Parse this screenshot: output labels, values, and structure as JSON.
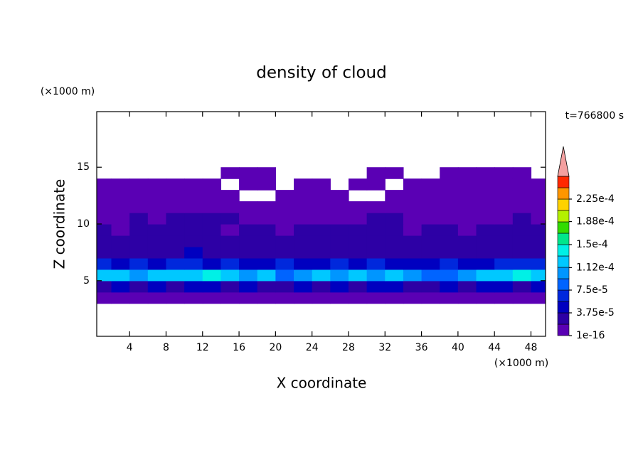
{
  "chart_data": {
    "type": "contour",
    "title": "density of cloud",
    "x_label": "X coordinate",
    "y_label": "Z coordinate",
    "x_unit": "(×1000 m)",
    "y_unit": "(×1000 m)",
    "time_label": "t=766800 s",
    "xlim": [
      0.4,
      49.6
    ],
    "ylim": [
      0.1,
      19.9
    ],
    "xticks": [
      4,
      8,
      12,
      16,
      20,
      24,
      28,
      32,
      36,
      40,
      44,
      48
    ],
    "yticks": [
      5,
      10,
      15
    ],
    "clim": [
      1e-16,
      0.0002625
    ],
    "cticks": [
      {
        "value": 1e-16,
        "label": "1e-16"
      },
      {
        "value": 3.75e-05,
        "label": "3.75e-5"
      },
      {
        "value": 7.5e-05,
        "label": "7.5e-5"
      },
      {
        "value": 0.000112,
        "label": "1.12e-4"
      },
      {
        "value": 0.00015,
        "label": "1.5e-4"
      },
      {
        "value": 0.000188,
        "label": "1.88e-4"
      },
      {
        "value": 0.000225,
        "label": "2.25e-4"
      }
    ],
    "colors": [
      "#5a00b4",
      "#2d00a5",
      "#0000c0",
      "#0028dc",
      "#0064ff",
      "#0096ff",
      "#00c8ff",
      "#00f0e6",
      "#00e68c",
      "#32dc00",
      "#b4f000",
      "#ffd200",
      "#ff9600",
      "#ff2800"
    ],
    "extend_color": "#f4a0a0",
    "x": [
      1,
      3,
      5,
      7,
      9,
      11,
      13,
      15,
      17,
      19,
      21,
      23,
      25,
      27,
      29,
      31,
      33,
      35,
      37,
      39,
      41,
      43,
      45,
      47,
      49
    ],
    "y": [
      3.5,
      4.5,
      5.5,
      6.5,
      7.5,
      8.5,
      9.5,
      10.5,
      11.5,
      12.5,
      13.5,
      14.5
    ],
    "z": [
      [
        1e-05,
        1e-05,
        1e-05,
        1e-05,
        1e-05,
        1e-05,
        1e-05,
        1e-05,
        1e-05,
        1e-05,
        1e-05,
        1e-05,
        1e-05,
        1e-05,
        1e-05,
        1e-05,
        1e-05,
        1e-05,
        1e-05,
        1e-05,
        1e-05,
        1e-05,
        1e-05,
        1e-05,
        1e-05
      ],
      [
        3e-05,
        5e-05,
        3e-05,
        5e-05,
        3e-05,
        5e-05,
        5e-05,
        3e-05,
        5e-05,
        3e-05,
        3e-05,
        5e-05,
        3e-05,
        5e-05,
        3e-05,
        5e-05,
        5e-05,
        3e-05,
        3e-05,
        5e-05,
        3e-05,
        5e-05,
        5e-05,
        3e-05,
        5e-05
      ],
      [
        0.00012,
        0.00012,
        0.0001,
        0.00012,
        0.00012,
        0.00012,
        0.00014,
        0.00012,
        0.0001,
        0.00012,
        9e-05,
        0.0001,
        0.00012,
        0.0001,
        0.00012,
        0.0001,
        0.00012,
        0.0001,
        9e-05,
        9e-05,
        0.0001,
        0.00012,
        0.00012,
        0.00014,
        0.00012
      ],
      [
        7e-05,
        5e-05,
        7e-05,
        5e-05,
        7e-05,
        7e-05,
        5e-05,
        7e-05,
        5e-05,
        5e-05,
        7e-05,
        5e-05,
        5e-05,
        7e-05,
        5e-05,
        7e-05,
        5e-05,
        5e-05,
        5e-05,
        7e-05,
        5e-05,
        5e-05,
        7e-05,
        7e-05,
        7e-05
      ],
      [
        3e-05,
        3e-05,
        3e-05,
        3e-05,
        3e-05,
        5e-05,
        3e-05,
        3e-05,
        3e-05,
        3e-05,
        3e-05,
        3e-05,
        3e-05,
        3e-05,
        3e-05,
        3e-05,
        3e-05,
        3e-05,
        3e-05,
        3e-05,
        3e-05,
        3e-05,
        3e-05,
        3e-05,
        3e-05
      ],
      [
        2.5e-05,
        2.5e-05,
        2.5e-05,
        2.5e-05,
        2.5e-05,
        2.5e-05,
        2.5e-05,
        2.5e-05,
        2.5e-05,
        2.5e-05,
        2.5e-05,
        2.5e-05,
        2.5e-05,
        2.5e-05,
        2.5e-05,
        2.5e-05,
        2.5e-05,
        2.5e-05,
        2.5e-05,
        2.5e-05,
        2.5e-05,
        2.5e-05,
        2.5e-05,
        2.5e-05,
        2.5e-05
      ],
      [
        2.5e-05,
        1e-05,
        2.5e-05,
        2.5e-05,
        2.5e-05,
        2.5e-05,
        2.5e-05,
        1e-05,
        2.5e-05,
        2.5e-05,
        1e-05,
        2.5e-05,
        2.5e-05,
        2.5e-05,
        2.5e-05,
        2.5e-05,
        2.5e-05,
        1e-05,
        2.5e-05,
        2.5e-05,
        1e-05,
        2.5e-05,
        2.5e-05,
        2.5e-05,
        2.5e-05
      ],
      [
        1e-05,
        1e-05,
        2.5e-05,
        1e-05,
        2.5e-05,
        2.5e-05,
        2.5e-05,
        2.5e-05,
        1e-05,
        1e-05,
        1e-05,
        1e-05,
        1e-05,
        1e-05,
        1e-05,
        2.5e-05,
        2.5e-05,
        1e-05,
        1e-05,
        1e-05,
        1e-05,
        1e-05,
        1e-05,
        2.5e-05,
        1e-05
      ],
      [
        1e-05,
        1e-05,
        1e-05,
        1e-05,
        1e-05,
        1e-05,
        1e-05,
        1e-05,
        1e-05,
        1e-05,
        1e-05,
        1e-05,
        1e-05,
        1e-05,
        1e-05,
        1e-05,
        1e-05,
        1e-05,
        1e-05,
        1e-05,
        1e-05,
        1e-05,
        1e-05,
        1e-05,
        1e-05
      ],
      [
        1e-05,
        1e-05,
        1e-05,
        1e-05,
        1e-05,
        1e-05,
        1e-05,
        1e-05,
        null,
        null,
        1e-05,
        1e-05,
        1e-05,
        1e-05,
        null,
        null,
        1e-05,
        1e-05,
        1e-05,
        1e-05,
        1e-05,
        1e-05,
        1e-05,
        1e-05,
        1e-05
      ],
      [
        1e-05,
        1e-05,
        1e-05,
        1e-05,
        1e-05,
        1e-05,
        1e-05,
        null,
        1e-05,
        1e-05,
        null,
        1e-05,
        1e-05,
        null,
        1e-05,
        1e-05,
        null,
        1e-05,
        1e-05,
        1e-05,
        1e-05,
        1e-05,
        1e-05,
        1e-05,
        1e-05
      ],
      [
        null,
        null,
        null,
        null,
        null,
        null,
        null,
        1e-05,
        1e-05,
        1e-05,
        null,
        null,
        null,
        null,
        null,
        1e-05,
        1e-05,
        null,
        null,
        1e-05,
        1e-05,
        1e-05,
        1e-05,
        1e-05,
        null
      ]
    ]
  }
}
